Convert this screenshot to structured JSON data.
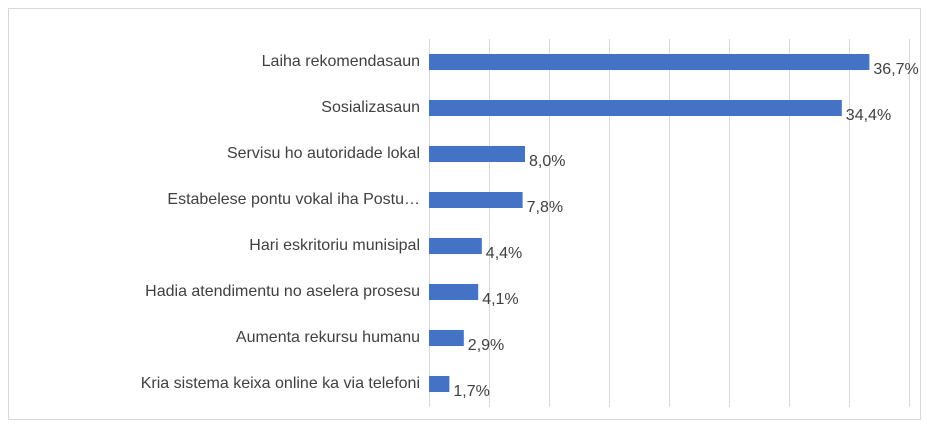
{
  "chart_data": {
    "type": "bar",
    "orientation": "horizontal",
    "categories": [
      "Laiha rekomendasaun",
      "Sosializasaun",
      "Servisu ho autoridade lokal",
      "Estabelese pontu vokal iha Postu…",
      "Hari eskritoriu munisipal",
      "Hadia atendimentu no aselera prosesu",
      "Aumenta rekursu humanu",
      "Kria sistema keixa online ka via telefoni"
    ],
    "values": [
      36.7,
      34.4,
      8.0,
      7.8,
      4.4,
      4.1,
      2.9,
      1.7
    ],
    "value_labels": [
      "36,7%",
      "34,4%",
      "8,0%",
      "7,8%",
      "4,4%",
      "4,1%",
      "2,9%",
      "1,7%"
    ],
    "color": "#4472c4",
    "xlim": [
      0,
      40
    ],
    "xticks": [
      0,
      5,
      10,
      15,
      20,
      25,
      30,
      35,
      40
    ],
    "grid": true
  }
}
